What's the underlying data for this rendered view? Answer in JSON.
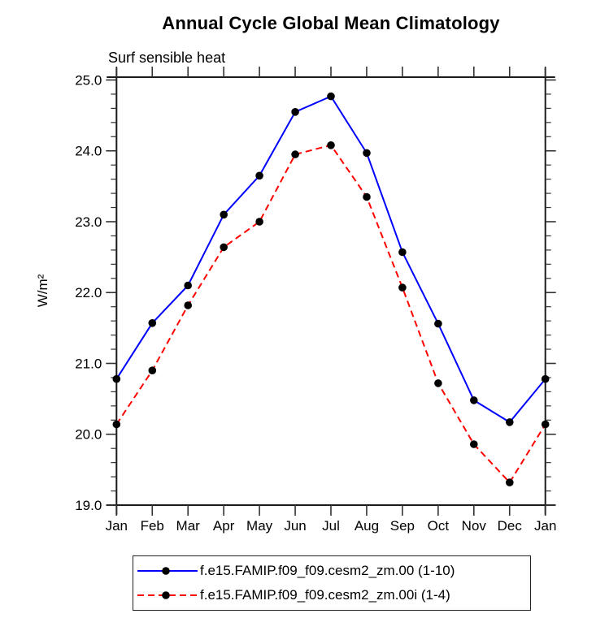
{
  "title": "Annual Cycle Global Mean Climatology",
  "subtitle": "Surf sensible heat",
  "colors": {
    "background": "#ffffff",
    "frame": "#1a1a1a",
    "tick": "#333333",
    "text": "#000000",
    "series1": "#0000ff",
    "series2": "#ff0000",
    "marker": "#000000"
  },
  "chart_data": {
    "type": "line",
    "title": "Annual Cycle Global Mean Climatology",
    "subtitle": "Surf sensible heat",
    "xlabel": "",
    "ylabel": "W/m²",
    "categories": [
      "Jan",
      "Feb",
      "Mar",
      "Apr",
      "May",
      "Jun",
      "Jul",
      "Aug",
      "Sep",
      "Oct",
      "Nov",
      "Dec",
      "Jan"
    ],
    "ylim": [
      19.0,
      25.04
    ],
    "yticks": [
      19.0,
      20.0,
      21.0,
      22.0,
      23.0,
      24.0,
      25.0
    ],
    "ytick_labels": [
      "19.0",
      "20.0",
      "21.0",
      "22.0",
      "23.0",
      "24.0",
      "25.0"
    ],
    "minor_tick_step": 0.2,
    "grid": false,
    "legend_position": "bottom",
    "series": [
      {
        "name": "f.e15.FAMIP.f09_f09.cesm2_zm.00 (1-10)",
        "color": "#0000ff",
        "line_style": "solid",
        "marker": "filled-circle",
        "marker_color": "#000000",
        "values": [
          20.78,
          21.57,
          22.1,
          23.1,
          23.65,
          24.55,
          24.77,
          23.97,
          22.57,
          21.56,
          20.48,
          20.17,
          20.78
        ]
      },
      {
        "name": "f.e15.FAMIP.f09_f09.cesm2_zm.00i (1-4)",
        "color": "#ff0000",
        "line_style": "dashed",
        "marker": "filled-circle",
        "marker_color": "#000000",
        "values": [
          20.14,
          20.9,
          21.82,
          22.64,
          23.0,
          23.95,
          24.08,
          23.35,
          22.07,
          20.72,
          19.86,
          19.32,
          20.14
        ]
      }
    ]
  }
}
